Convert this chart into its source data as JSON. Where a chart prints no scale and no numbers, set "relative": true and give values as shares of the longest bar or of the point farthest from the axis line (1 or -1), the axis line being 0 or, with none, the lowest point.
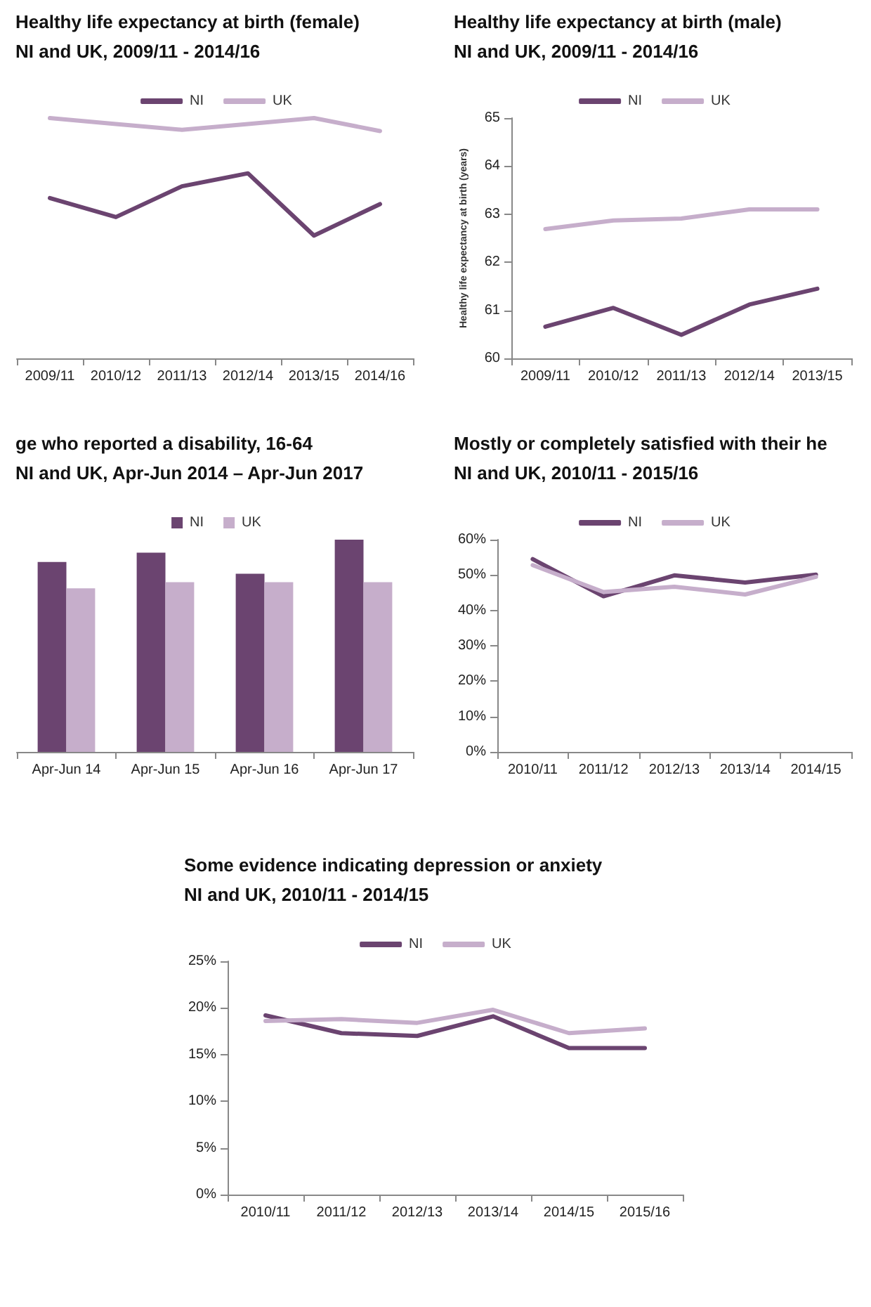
{
  "chart_data": [
    {
      "type": "line",
      "title": "Healthy life expectancy at birth (female)",
      "subtitle": "NI and UK, 2009/11 - 2014/16",
      "relative": true,
      "legend": "top",
      "marker": "none",
      "categories": [
        "2009/11",
        "2010/12",
        "2011/13",
        "2012/14",
        "2013/15",
        "2014/16"
      ],
      "series": [
        {
          "name": "NI",
          "color": "#6b4470",
          "values": [
            0.667,
            0.588,
            0.716,
            0.77,
            0.511,
            0.642
          ]
        },
        {
          "name": "UK",
          "color": "#c6aecb",
          "values": [
            1,
            0.975,
            0.951,
            0.975,
            1,
            0.946
          ]
        }
      ]
    },
    {
      "type": "line",
      "title": "Healthy life expectancy at birth (male)",
      "subtitle": "NI and UK, 2009/11 - 2014/16",
      "ylabel": "Healthy life expectancy at birth (years)",
      "legend": "top",
      "marker": "none",
      "ylim": [
        60,
        65
      ],
      "yticks": [
        60,
        61,
        62,
        63,
        64,
        65
      ],
      "categories": [
        "2009/11",
        "2010/12",
        "2011/13",
        "2012/14",
        "2013/15"
      ],
      "series": [
        {
          "name": "NI",
          "color": "#6b4470",
          "values": [
            60.66,
            61.05,
            60.49,
            61.12,
            61.45
          ]
        },
        {
          "name": "UK",
          "color": "#c6aecb",
          "values": [
            62.69,
            62.87,
            62.91,
            63.1,
            63.1
          ]
        }
      ]
    },
    {
      "type": "bar",
      "title": "ge who reported a disability, 16-64",
      "subtitle": "NI and UK, Apr-Jun 2014 – Apr-Jun 2017",
      "relative": true,
      "legend": "top",
      "categories": [
        "Apr-Jun 14",
        "Apr-Jun 15",
        "Apr-Jun 16",
        "Apr-Jun 17"
      ],
      "series": [
        {
          "name": "NI",
          "color": "#6b4470",
          "values": [
            0.895,
            0.939,
            0.839,
            1
          ]
        },
        {
          "name": "UK",
          "color": "#c6aecb",
          "values": [
            0.771,
            0.8,
            0.8,
            0.8
          ]
        }
      ]
    },
    {
      "type": "line",
      "title": "Mostly or completely satisfied with their he",
      "subtitle": "NI and UK, 2010/11 - 2015/16",
      "legend": "top",
      "marker": "none",
      "ylim": [
        0,
        60
      ],
      "yticks": [
        {
          "value": 0,
          "label": "0%"
        },
        {
          "value": 10,
          "label": "10%"
        },
        {
          "value": 20,
          "label": "20%"
        },
        {
          "value": 30,
          "label": "30%"
        },
        {
          "value": 40,
          "label": "40%"
        },
        {
          "value": 50,
          "label": "50%"
        },
        {
          "value": 60,
          "label": "60%"
        }
      ],
      "categories": [
        "2010/11",
        "2011/12",
        "2012/13",
        "2013/14",
        "2014/15"
      ],
      "series": [
        {
          "name": "NI",
          "color": "#6b4470",
          "values": [
            54.5,
            44,
            49.9,
            47.9,
            50.1
          ]
        },
        {
          "name": "UK",
          "color": "#c6aecb",
          "values": [
            52.8,
            45.2,
            46.7,
            44.5,
            49.5
          ]
        }
      ]
    },
    {
      "type": "line",
      "title": "Some evidence indicating depression or anxiety",
      "subtitle": "NI and UK, 2010/11 - 2014/15",
      "legend": "top",
      "marker": "none",
      "ylim": [
        0,
        25
      ],
      "yticks": [
        {
          "value": 0,
          "label": "0%"
        },
        {
          "value": 5,
          "label": "5%"
        },
        {
          "value": 10,
          "label": "10%"
        },
        {
          "value": 15,
          "label": "15%"
        },
        {
          "value": 20,
          "label": "20%"
        },
        {
          "value": 25,
          "label": "25%"
        }
      ],
      "categories": [
        "2010/11",
        "2011/12",
        "2012/13",
        "2013/14",
        "2014/15",
        "2015/16"
      ],
      "series": [
        {
          "name": "NI",
          "color": "#6b4470",
          "values": [
            19.2,
            17.3,
            17,
            19.1,
            15.7,
            15.7
          ]
        },
        {
          "name": "UK",
          "color": "#c6aecb",
          "values": [
            18.6,
            18.8,
            18.4,
            19.8,
            17.3,
            17.8
          ]
        }
      ]
    }
  ]
}
